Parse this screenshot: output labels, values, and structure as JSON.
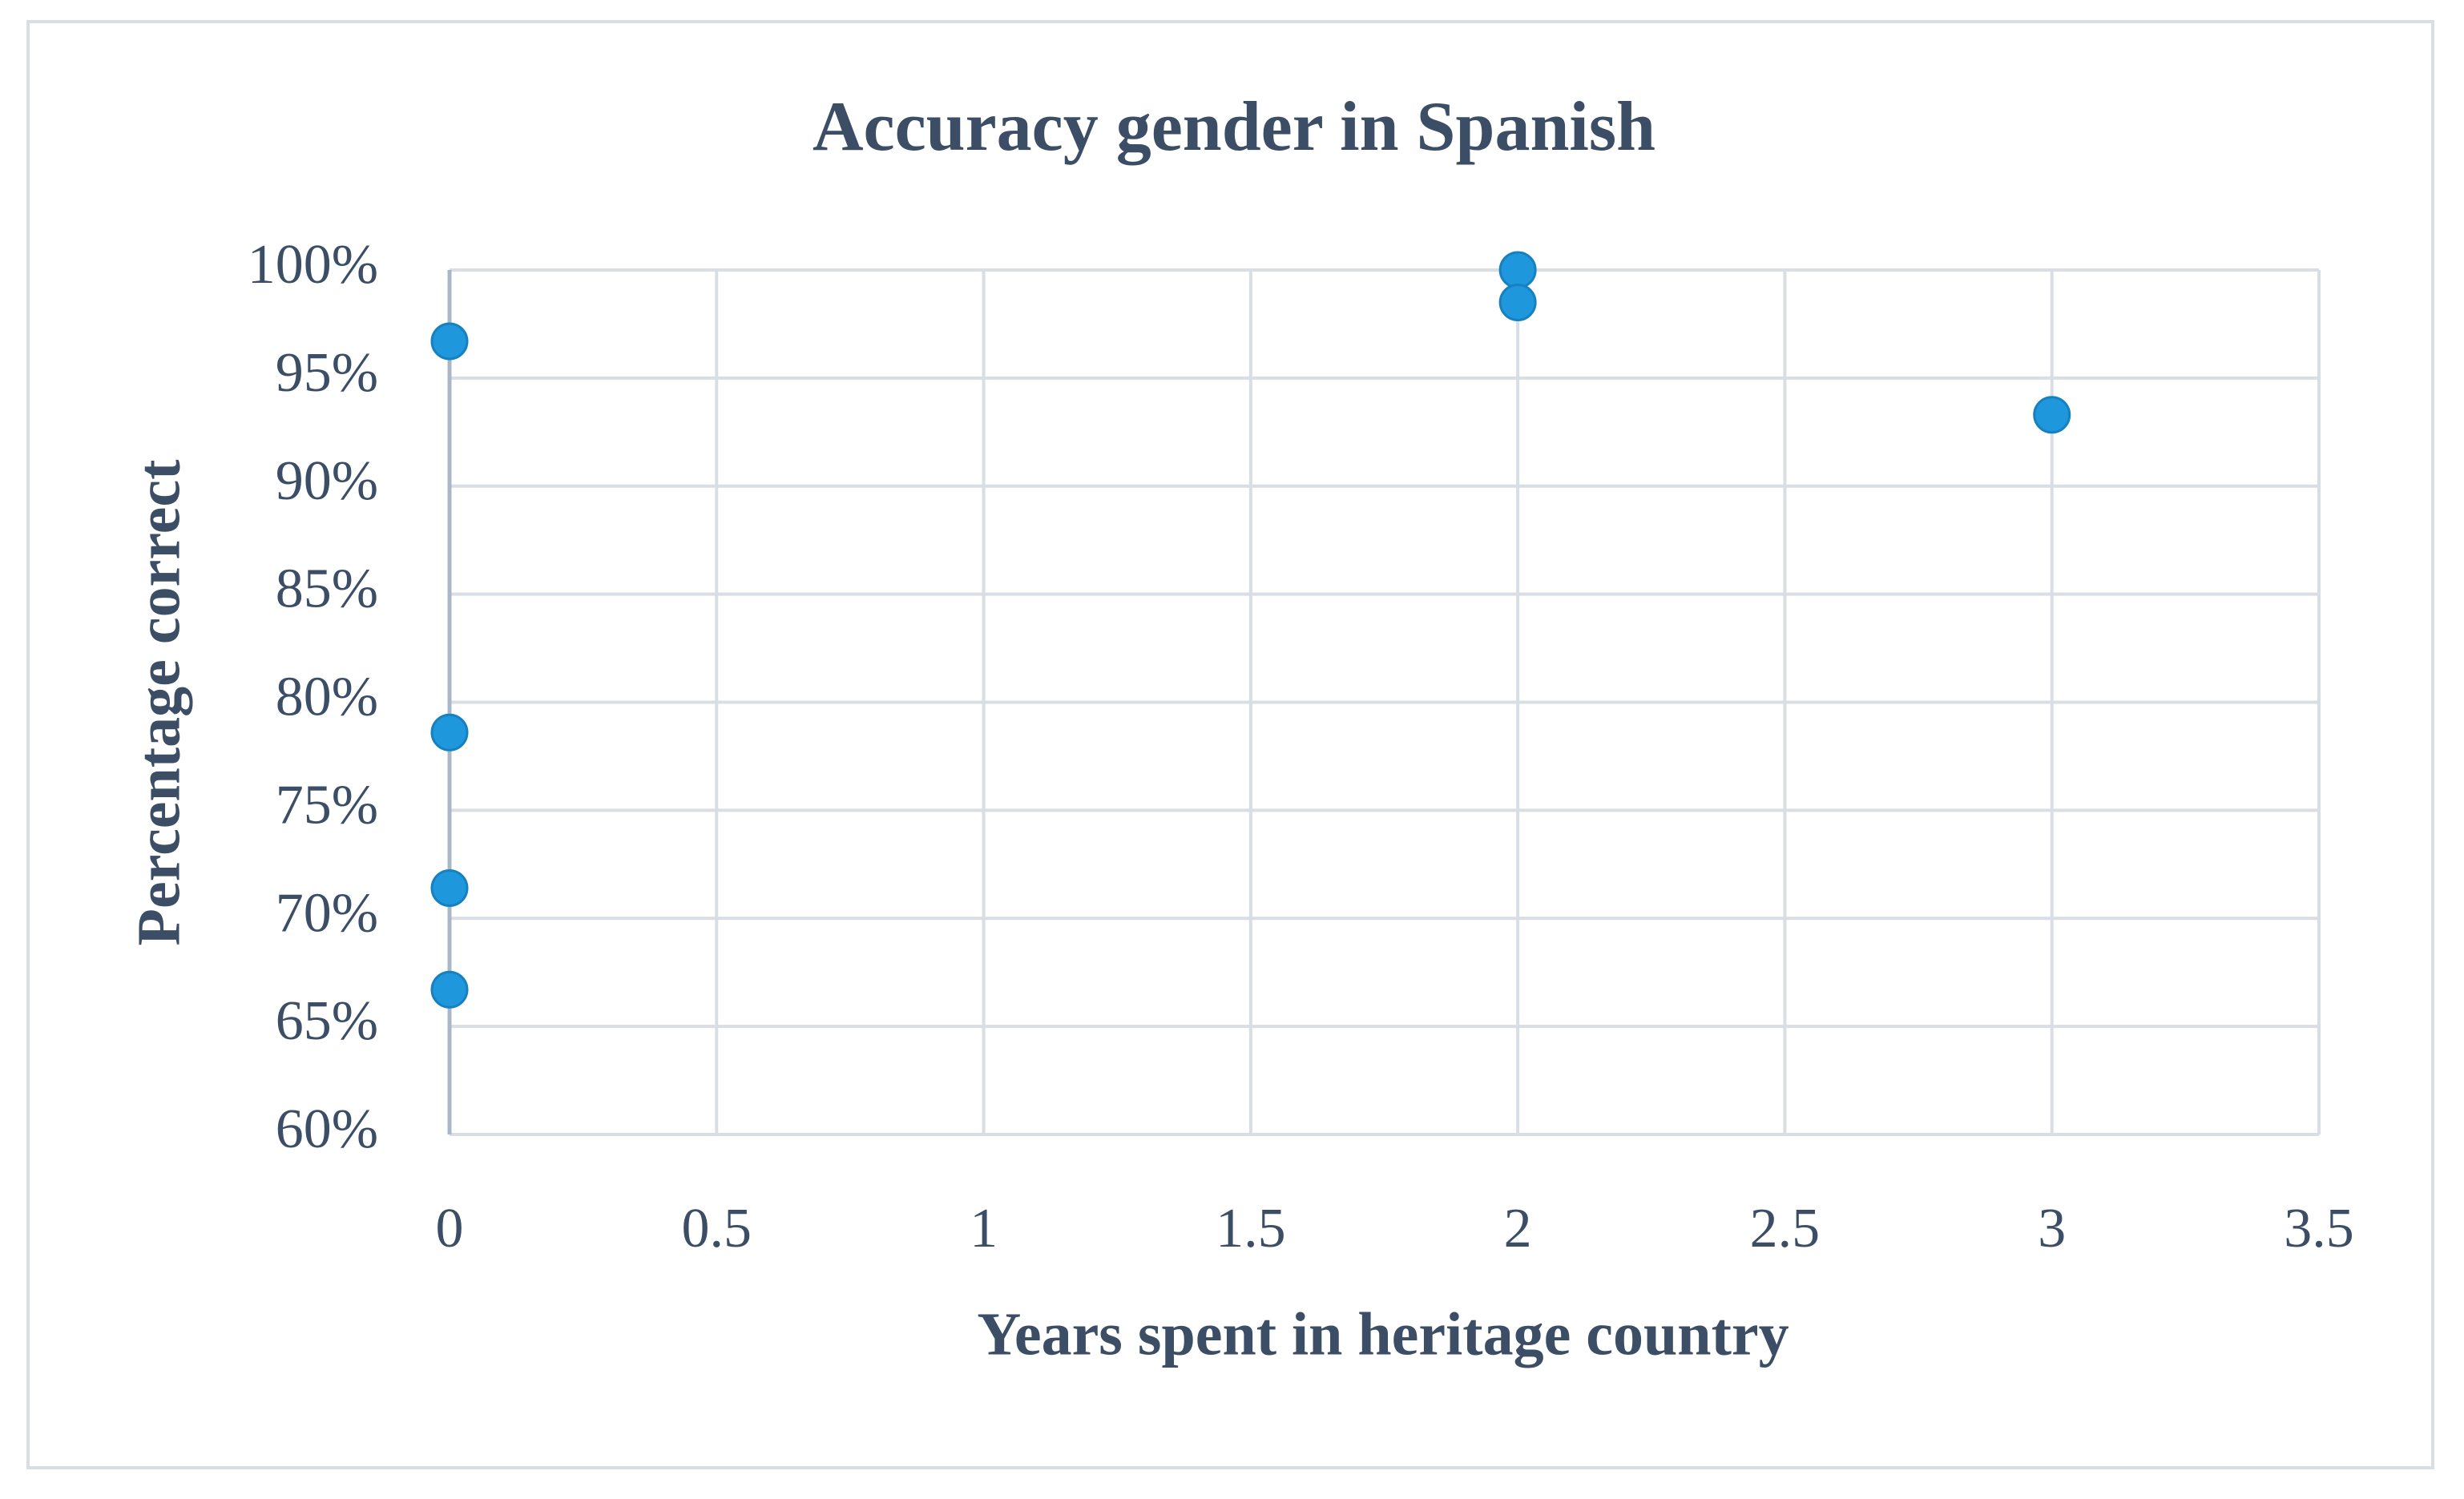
{
  "chart_data": {
    "type": "scatter",
    "title": "Accuracy gender in Spanish",
    "x_label": "Years spent in heritage country",
    "y_label": "Percentage correct",
    "series": [
      {
        "color": "#1f97dc",
        "x": [
          0,
          0,
          0,
          0,
          2,
          2,
          3
        ],
        "values": [
          96.7,
          78.6,
          71.4,
          66.7,
          100,
          98.5,
          93.3
        ]
      }
    ],
    "xlim": [
      0,
      3.5
    ],
    "xticks": [
      0,
      0.5,
      1,
      1.5,
      2,
      2.5,
      3,
      3.5
    ],
    "ylim": [
      60,
      100
    ],
    "yticks": [
      {
        "value": 60,
        "label": "60%"
      },
      {
        "value": 65,
        "label": "65%"
      },
      {
        "value": 70,
        "label": "70%"
      },
      {
        "value": 75,
        "label": "75%"
      },
      {
        "value": 80,
        "label": "80%"
      },
      {
        "value": 85,
        "label": "85%"
      },
      {
        "value": 90,
        "label": "90%"
      },
      {
        "value": 95,
        "label": "95%"
      },
      {
        "value": 100,
        "label": "100%"
      }
    ],
    "grid": true
  }
}
